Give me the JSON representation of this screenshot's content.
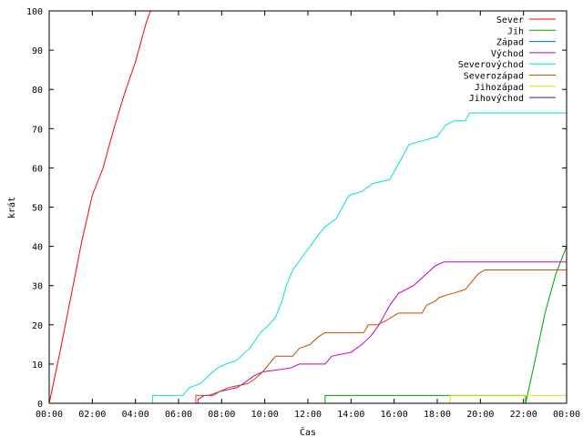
{
  "chart_data": {
    "type": "line",
    "xlabel": "Čas",
    "ylabel": "krát",
    "xlim": [
      0,
      24
    ],
    "ylim": [
      0,
      100
    ],
    "x_ticks": [
      "00:00",
      "02:00",
      "04:00",
      "06:00",
      "08:00",
      "10:00",
      "12:00",
      "14:00",
      "16:00",
      "18:00",
      "20:00",
      "22:00",
      "00:00"
    ],
    "y_ticks": [
      0,
      10,
      20,
      30,
      40,
      50,
      60,
      70,
      80,
      90,
      100
    ],
    "grid": false,
    "legend_position": "top-right",
    "series": [
      {
        "name": "Sever",
        "color": "#ff0000",
        "points": [
          [
            0,
            0
          ],
          [
            0.5,
            13
          ],
          [
            1,
            27
          ],
          [
            1.5,
            41
          ],
          [
            2,
            53
          ],
          [
            2.5,
            60
          ],
          [
            3,
            70
          ],
          [
            3.5,
            79
          ],
          [
            4,
            87
          ],
          [
            4.5,
            97
          ],
          [
            4.7,
            100
          ]
        ]
      },
      {
        "name": "Jih",
        "color": "#00a000",
        "points": [
          [
            12.8,
            0
          ],
          [
            12.8,
            2
          ],
          [
            22.1,
            2
          ],
          [
            22.1,
            0
          ],
          [
            22.5,
            10
          ],
          [
            23,
            23
          ],
          [
            23.5,
            33
          ],
          [
            24,
            40
          ]
        ]
      },
      {
        "name": "Západ",
        "color": "#0080a0",
        "points": [
          [
            0,
            0
          ],
          [
            24,
            0
          ]
        ]
      },
      {
        "name": "Východ",
        "color": "#c000c0",
        "points": [
          [
            6.9,
            0
          ],
          [
            6.9,
            1
          ],
          [
            7.2,
            2
          ],
          [
            7.6,
            2
          ],
          [
            7.9,
            3
          ],
          [
            8.7,
            4
          ],
          [
            9,
            5
          ],
          [
            9.5,
            7
          ],
          [
            9.9,
            8
          ],
          [
            11.2,
            9
          ],
          [
            11.6,
            10
          ],
          [
            12.8,
            10
          ],
          [
            13.1,
            12
          ],
          [
            14,
            13
          ],
          [
            14.5,
            15
          ],
          [
            14.9,
            17
          ],
          [
            15.3,
            20
          ],
          [
            15.5,
            22
          ],
          [
            15.8,
            25
          ],
          [
            16.2,
            28
          ],
          [
            16.9,
            30
          ],
          [
            17.5,
            33
          ],
          [
            17.9,
            35
          ],
          [
            18.3,
            36
          ],
          [
            24,
            36
          ]
        ]
      },
      {
        "name": "Severovýchod",
        "color": "#00e0e0",
        "points": [
          [
            4.8,
            0
          ],
          [
            4.8,
            2
          ],
          [
            6.2,
            2
          ],
          [
            6.5,
            4
          ],
          [
            7,
            5
          ],
          [
            7.4,
            7
          ],
          [
            7.8,
            9
          ],
          [
            8.2,
            10
          ],
          [
            8.7,
            11
          ],
          [
            9.3,
            14
          ],
          [
            9.8,
            18
          ],
          [
            10.2,
            20
          ],
          [
            10.5,
            22
          ],
          [
            10.8,
            26
          ],
          [
            11,
            30
          ],
          [
            11.3,
            34
          ],
          [
            11.7,
            37
          ],
          [
            12.1,
            40
          ],
          [
            12.5,
            43
          ],
          [
            12.8,
            45
          ],
          [
            13.3,
            47
          ],
          [
            13.6,
            50
          ],
          [
            13.9,
            53
          ],
          [
            14.5,
            54
          ],
          [
            15,
            56
          ],
          [
            15.8,
            57
          ],
          [
            16.1,
            60
          ],
          [
            16.4,
            63
          ],
          [
            16.7,
            66
          ],
          [
            17.4,
            67
          ],
          [
            18,
            68
          ],
          [
            18.4,
            71
          ],
          [
            18.8,
            72
          ],
          [
            19.3,
            72
          ],
          [
            19.5,
            74
          ],
          [
            24,
            74
          ]
        ]
      },
      {
        "name": "Severozápad",
        "color": "#c05000",
        "points": [
          [
            6.8,
            0
          ],
          [
            6.8,
            2
          ],
          [
            7.4,
            2
          ],
          [
            7.9,
            3
          ],
          [
            8.3,
            4
          ],
          [
            9.2,
            5
          ],
          [
            9.5,
            6
          ],
          [
            9.9,
            8
          ],
          [
            10.5,
            12
          ],
          [
            11.3,
            12
          ],
          [
            11.6,
            14
          ],
          [
            12.1,
            15
          ],
          [
            12.5,
            17
          ],
          [
            12.8,
            18
          ],
          [
            14.6,
            18
          ],
          [
            14.8,
            20
          ],
          [
            15.2,
            20
          ],
          [
            15.6,
            21
          ],
          [
            15.9,
            22
          ],
          [
            16.2,
            23
          ],
          [
            17.3,
            23
          ],
          [
            17.5,
            25
          ],
          [
            17.9,
            26
          ],
          [
            18.1,
            27
          ],
          [
            18.7,
            28
          ],
          [
            19.3,
            29
          ],
          [
            19.6,
            31
          ],
          [
            19.9,
            33
          ],
          [
            20.2,
            34
          ],
          [
            24,
            34
          ]
        ]
      },
      {
        "name": "Jihozápad",
        "color": "#e0e000",
        "points": [
          [
            18.6,
            0
          ],
          [
            18.6,
            2
          ],
          [
            24,
            2
          ]
        ]
      },
      {
        "name": "Jihovýchod",
        "color": "#3020a0",
        "points": [
          [
            0,
            0
          ],
          [
            24,
            0
          ]
        ]
      }
    ]
  }
}
